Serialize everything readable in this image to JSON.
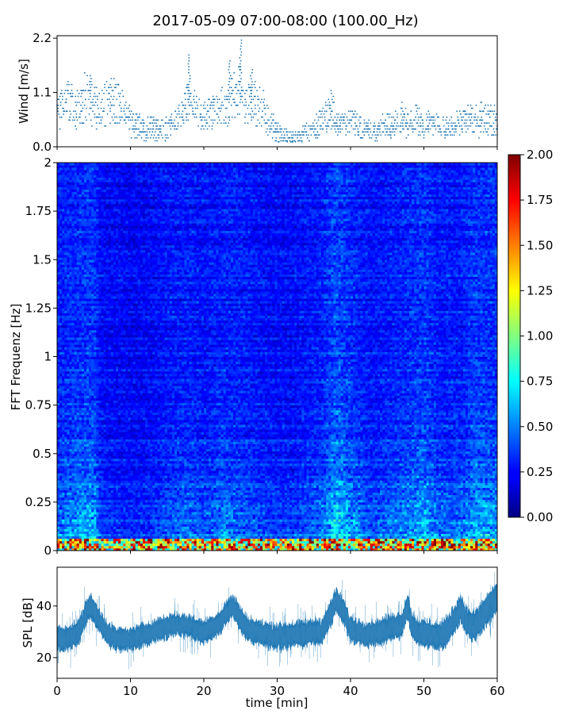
{
  "title": "2017-05-09 07:00-08:00 (100.00_Hz)",
  "chart_data": [
    {
      "id": "wind",
      "type": "scatter",
      "ylabel": "Wind [m/s]",
      "xlim": [
        0,
        60
      ],
      "ylim": [
        0,
        2.25
      ],
      "yticks": [
        "0.0",
        "1.1",
        "2.2"
      ],
      "marker_color": "#1f77b4",
      "x_min_per_point": 0.125,
      "y_step": 0.06,
      "profile": [
        [
          0,
          0.62
        ],
        [
          1,
          0.9
        ],
        [
          2,
          0.85
        ],
        [
          3,
          0.75
        ],
        [
          4,
          1.05
        ],
        [
          5,
          0.95
        ],
        [
          6,
          0.82
        ],
        [
          7,
          0.9
        ],
        [
          8,
          0.95
        ],
        [
          9,
          0.78
        ],
        [
          10,
          0.55
        ],
        [
          11,
          0.4
        ],
        [
          12,
          0.35
        ],
        [
          13,
          0.38
        ],
        [
          14,
          0.35
        ],
        [
          15,
          0.42
        ],
        [
          16,
          0.48
        ],
        [
          17,
          0.62
        ],
        [
          18,
          0.92
        ],
        [
          19,
          0.7
        ],
        [
          20,
          0.58
        ],
        [
          21,
          0.72
        ],
        [
          22,
          0.82
        ],
        [
          23,
          0.8
        ],
        [
          24,
          1.05
        ],
        [
          25,
          1.12
        ],
        [
          26,
          0.92
        ],
        [
          27,
          0.95
        ],
        [
          28,
          0.78
        ],
        [
          29,
          0.48
        ],
        [
          30,
          0.3
        ],
        [
          31,
          0.22
        ],
        [
          32,
          0.18
        ],
        [
          33,
          0.22
        ],
        [
          34,
          0.3
        ],
        [
          35,
          0.38
        ],
        [
          36,
          0.5
        ],
        [
          37,
          0.65
        ],
        [
          38,
          0.55
        ],
        [
          39,
          0.45
        ],
        [
          40,
          0.6
        ],
        [
          41,
          0.42
        ],
        [
          42,
          0.38
        ],
        [
          43,
          0.3
        ],
        [
          44,
          0.38
        ],
        [
          45,
          0.45
        ],
        [
          46,
          0.5
        ],
        [
          47,
          0.62
        ],
        [
          48,
          0.42
        ],
        [
          49,
          0.52
        ],
        [
          50,
          0.45
        ],
        [
          51,
          0.5
        ],
        [
          52,
          0.4
        ],
        [
          53,
          0.35
        ],
        [
          54,
          0.45
        ],
        [
          55,
          0.5
        ],
        [
          56,
          0.58
        ],
        [
          57,
          0.52
        ],
        [
          58,
          0.6
        ],
        [
          59,
          0.55
        ],
        [
          60,
          0.48
        ]
      ],
      "peaks": [
        [
          25.0,
          2.2
        ],
        [
          18.0,
          1.9
        ],
        [
          23.5,
          1.75
        ],
        [
          26.5,
          1.6
        ],
        [
          37.5,
          1.2
        ],
        [
          4.5,
          1.45
        ]
      ]
    },
    {
      "id": "spectrogram",
      "type": "heatmap",
      "ylabel": "FFT Frequenz [Hz]",
      "xlim": [
        0,
        60
      ],
      "ylim": [
        0,
        2
      ],
      "yticks": [
        {
          "value": 0,
          "label": "0"
        },
        {
          "value": 0.25,
          "label": "0.25"
        },
        {
          "value": 0.5,
          "label": "0.5"
        },
        {
          "value": 0.75,
          "label": "0.75"
        },
        {
          "value": 1,
          "label": "1"
        },
        {
          "value": 1.25,
          "label": "1.25"
        },
        {
          "value": 1.5,
          "label": "1.5"
        },
        {
          "value": 1.75,
          "label": "1.75"
        },
        {
          "value": 2,
          "label": "2"
        }
      ],
      "colormap": "jet",
      "colorbar": {
        "range": [
          0,
          2
        ],
        "ticks": [
          "0.00",
          "0.25",
          "0.50",
          "0.75",
          "1.00",
          "1.25",
          "1.50",
          "1.75",
          "2.00"
        ]
      },
      "time_bins": 180,
      "freq_bins": 160,
      "base_level": 0.18,
      "lowfreq_band_hz": 0.06,
      "lowfreq_level": 1.1,
      "activity": [
        [
          0,
          0.3
        ],
        [
          3,
          0.4
        ],
        [
          5,
          0.45
        ],
        [
          6,
          0.2
        ],
        [
          10,
          0.15
        ],
        [
          13,
          0.2
        ],
        [
          15,
          0.25
        ],
        [
          18,
          0.3
        ],
        [
          20,
          0.25
        ],
        [
          23,
          0.35
        ],
        [
          25,
          0.3
        ],
        [
          28,
          0.22
        ],
        [
          32,
          0.2
        ],
        [
          36,
          0.3
        ],
        [
          38,
          0.55
        ],
        [
          40,
          0.4
        ],
        [
          43,
          0.25
        ],
        [
          47,
          0.35
        ],
        [
          50,
          0.45
        ],
        [
          52,
          0.3
        ],
        [
          55,
          0.3
        ],
        [
          57,
          0.45
        ],
        [
          60,
          0.4
        ]
      ]
    },
    {
      "id": "spl",
      "type": "area",
      "ylabel": "SPL [dB]",
      "xlabel": "time [min]",
      "xlim": [
        0,
        60
      ],
      "ylim": [
        12,
        55
      ],
      "yticks": [
        {
          "value": 20,
          "label": "20"
        },
        {
          "value": 40,
          "label": "40"
        }
      ],
      "xticks": [
        "0",
        "10",
        "20",
        "30",
        "40",
        "50",
        "60"
      ],
      "color": "#1f77b4",
      "center": [
        [
          0,
          27
        ],
        [
          2,
          28
        ],
        [
          3,
          30
        ],
        [
          4,
          38
        ],
        [
          4.5,
          40
        ],
        [
          5,
          38
        ],
        [
          6,
          33
        ],
        [
          7,
          29
        ],
        [
          8,
          27
        ],
        [
          10,
          27
        ],
        [
          12,
          29
        ],
        [
          14,
          31
        ],
        [
          16,
          33
        ],
        [
          18,
          32
        ],
        [
          20,
          30
        ],
        [
          22,
          33
        ],
        [
          23,
          37
        ],
        [
          24,
          40
        ],
        [
          25,
          35
        ],
        [
          26,
          31
        ],
        [
          28,
          29
        ],
        [
          30,
          28
        ],
        [
          33,
          29
        ],
        [
          36,
          30
        ],
        [
          37,
          35
        ],
        [
          38,
          42
        ],
        [
          39,
          38
        ],
        [
          40,
          31
        ],
        [
          42,
          29
        ],
        [
          44,
          30
        ],
        [
          46,
          32
        ],
        [
          47,
          33
        ],
        [
          47.8,
          40
        ],
        [
          48.3,
          33
        ],
        [
          49,
          30
        ],
        [
          51,
          29
        ],
        [
          52,
          28
        ],
        [
          53,
          30
        ],
        [
          54,
          34
        ],
        [
          55,
          39
        ],
        [
          56,
          33
        ],
        [
          57,
          32
        ],
        [
          58,
          36
        ],
        [
          59,
          40
        ],
        [
          60,
          43
        ]
      ],
      "half_width": [
        [
          0,
          4
        ],
        [
          10,
          3.5
        ],
        [
          20,
          3.5
        ],
        [
          30,
          4
        ],
        [
          40,
          4
        ],
        [
          50,
          4
        ],
        [
          60,
          5
        ]
      ],
      "spike_extent": 8
    }
  ]
}
